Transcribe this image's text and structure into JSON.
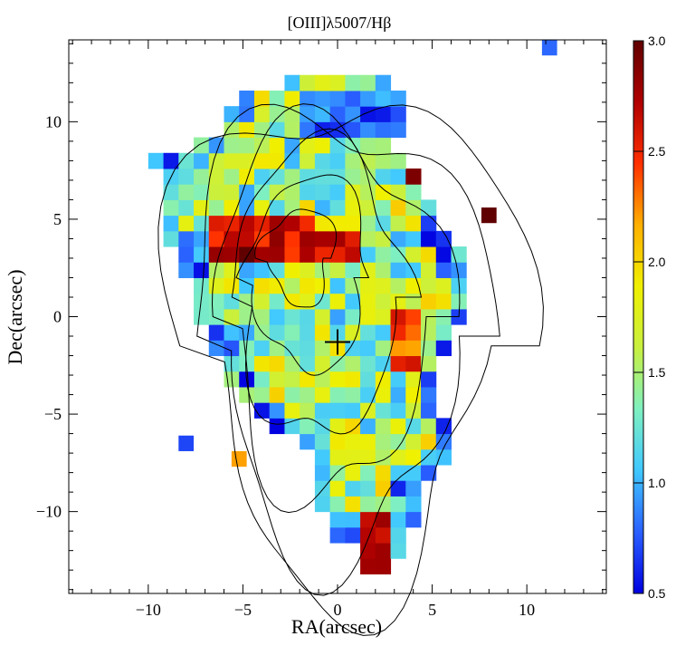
{
  "chart_data": {
    "type": "heatmap",
    "title": "[OIII]λ5007/Hβ",
    "xlabel": "RA(arcsec)",
    "ylabel": "Dec(arcsec)",
    "xlim": [
      -14.2,
      14.2
    ],
    "ylim": [
      -14.2,
      14.2
    ],
    "x_ticks": [
      -10,
      -5,
      0,
      5,
      10
    ],
    "x_tick_labels": [
      "−10",
      "−5",
      "0",
      "5",
      "10"
    ],
    "y_ticks": [
      -10,
      -5,
      0,
      5,
      10
    ],
    "y_tick_labels": [
      "−10",
      "−5",
      "0",
      "5",
      "10"
    ],
    "colorbar": {
      "range": [
        0.5,
        3.0
      ],
      "ticks": [
        0.5,
        1.0,
        1.5,
        2.0,
        2.5,
        3.0
      ],
      "tick_labels": [
        "0.5",
        "1.0",
        "1.5",
        "2.0",
        "2.5",
        "3.0"
      ],
      "colormap": [
        "#0000e0",
        "#2a60ff",
        "#40c8ff",
        "#7ff0c0",
        "#c8f040",
        "#f0f000",
        "#ffb000",
        "#ff3000",
        "#b00000",
        "#600000"
      ]
    },
    "pixel_size_arcsec": 0.8,
    "center_marker": {
      "symbol": "+",
      "x": 0.0,
      "y": -1.3
    },
    "regions": [
      {
        "name": "base nebula",
        "value": 1.5,
        "note": "cyan-green ratio body across most of the map"
      },
      {
        "name": "NE ridge",
        "x": [
          -6.5,
          -1.0
        ],
        "y": [
          3.0,
          5.5
        ],
        "value": 2.6
      },
      {
        "name": "NE knot",
        "x": [
          -5.5,
          -3.5
        ],
        "y": [
          2.6,
          3.6
        ],
        "value": 2.9
      },
      {
        "name": "central ridge",
        "x": [
          -1.5,
          1.5
        ],
        "y": [
          2.6,
          4.0
        ],
        "value": 2.7
      },
      {
        "name": "E clump",
        "x": [
          3.0,
          4.8
        ],
        "y": [
          -3.0,
          0.0
        ],
        "value": 2.4
      },
      {
        "name": "S knot",
        "x": [
          1.0,
          3.0
        ],
        "y": [
          -12.8,
          -10.0
        ],
        "value": 2.8
      },
      {
        "name": "N edge",
        "x": [
          -2.0,
          3.5
        ],
        "y": [
          9.5,
          11.5
        ],
        "value": 0.8
      },
      {
        "name": "NE pair",
        "x": [
          3.8,
          4.8
        ],
        "y": [
          7.0,
          8.5
        ],
        "value": 2.9
      },
      {
        "name": "isolated pixel",
        "x": 11.2,
        "y": 13.8,
        "value": 0.8
      },
      {
        "name": "isolated pixel",
        "x": 8.0,
        "y": 5.2,
        "value": 3.0
      },
      {
        "name": "isolated pixel",
        "x": -8.0,
        "y": -6.5,
        "value": 0.7
      },
      {
        "name": "isolated pixel",
        "x": -5.2,
        "y": -7.3,
        "value": 2.2
      }
    ],
    "contours": "black continuum intensity contours, nested levels peaking near the center cross",
    "grid": false,
    "legend": "colorbar on right"
  }
}
